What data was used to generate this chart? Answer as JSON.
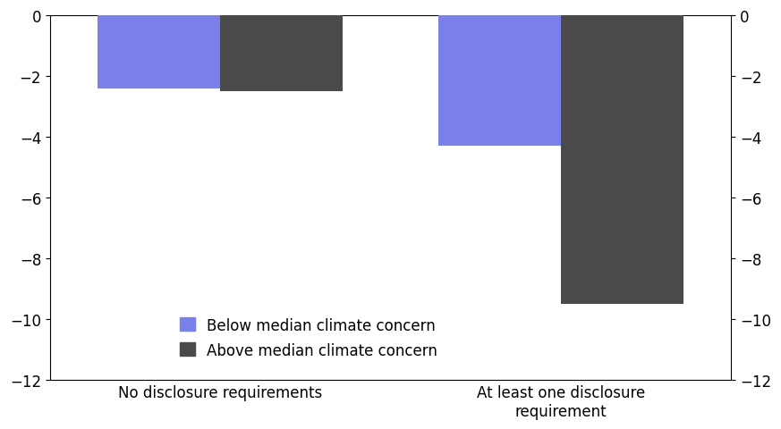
{
  "categories": [
    "No disclosure requirements",
    "At least one disclosure\nrequirement"
  ],
  "below_median": [
    -2.4,
    -4.3
  ],
  "above_median": [
    -2.5,
    -9.5
  ],
  "below_color": "#7b7fe8",
  "above_color": "#4a4a4a",
  "ylim": [
    -12,
    0
  ],
  "yticks": [
    0,
    -2,
    -4,
    -6,
    -8,
    -10,
    -12
  ],
  "legend_below": "Below median climate concern",
  "legend_above": "Above median climate concern",
  "bar_width": 0.18,
  "group_positions": [
    0.25,
    0.75
  ],
  "background_color": "#ffffff",
  "tick_fontsize": 12,
  "label_fontsize": 12
}
